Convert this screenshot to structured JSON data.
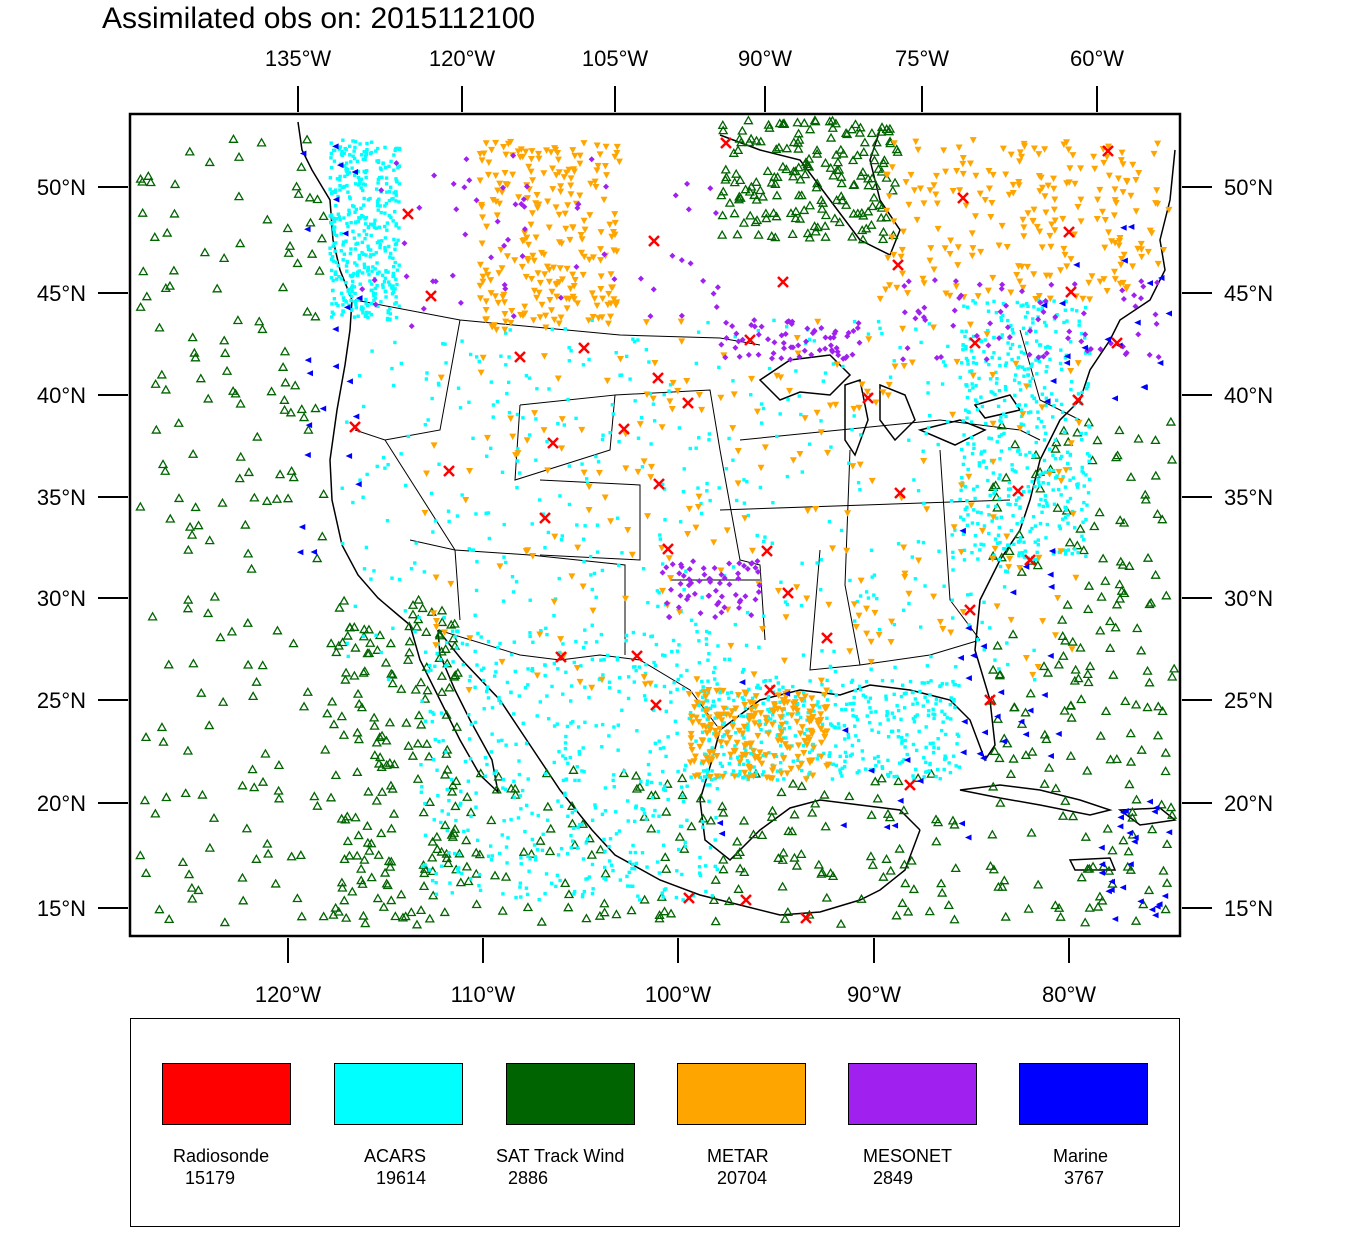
{
  "title": "Assimilated obs on: 2015112100",
  "axes": {
    "top": [
      "135°W",
      "120°W",
      "105°W",
      "90°W",
      "75°W",
      "60°W"
    ],
    "bottom": [
      "120°W",
      "110°W",
      "100°W",
      "90°W",
      "80°W"
    ],
    "lat": [
      "50°N",
      "45°N",
      "40°N",
      "35°N",
      "30°N",
      "25°N",
      "20°N",
      "15°N"
    ]
  },
  "legend": [
    {
      "name": "Radiosonde",
      "count": "15179",
      "color": "#ff0000"
    },
    {
      "name": "ACARS",
      "count": "19614",
      "color": "#00ffff"
    },
    {
      "name": "SAT Track Wind",
      "count": "2886",
      "color": "#006400"
    },
    {
      "name": "METAR",
      "count": "20704",
      "color": "#ffa500"
    },
    {
      "name": "MESONET",
      "count": "2849",
      "color": "#a020f0"
    },
    {
      "name": "Marine",
      "count": "3767",
      "color": "#0000ff"
    }
  ]
}
